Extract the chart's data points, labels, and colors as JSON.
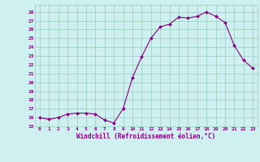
{
  "x": [
    0,
    1,
    2,
    3,
    4,
    5,
    6,
    7,
    8,
    9,
    10,
    11,
    12,
    13,
    14,
    15,
    16,
    17,
    18,
    19,
    20,
    21,
    22,
    23
  ],
  "y": [
    16.0,
    15.8,
    16.0,
    16.4,
    16.5,
    16.5,
    16.4,
    15.7,
    15.4,
    17.0,
    20.5,
    22.9,
    25.0,
    26.3,
    26.6,
    27.4,
    27.3,
    27.5,
    28.0,
    27.5,
    26.8,
    24.2,
    22.5,
    21.6
  ],
  "xlim": [
    -0.5,
    23.5
  ],
  "ylim": [
    15,
    28.8
  ],
  "yticks": [
    15,
    16,
    17,
    18,
    19,
    20,
    21,
    22,
    23,
    24,
    25,
    26,
    27,
    28
  ],
  "xticks": [
    0,
    1,
    2,
    3,
    4,
    5,
    6,
    7,
    8,
    9,
    10,
    11,
    12,
    13,
    14,
    15,
    16,
    17,
    18,
    19,
    20,
    21,
    22,
    23
  ],
  "xlabel": "Windchill (Refroidissement éolien,°C)",
  "line_color": "#880088",
  "marker_color": "#880088",
  "bg_color": "#cff0f0",
  "grid_color": "#99ccbb",
  "tick_label_color": "#880088",
  "axis_label_color": "#880088"
}
